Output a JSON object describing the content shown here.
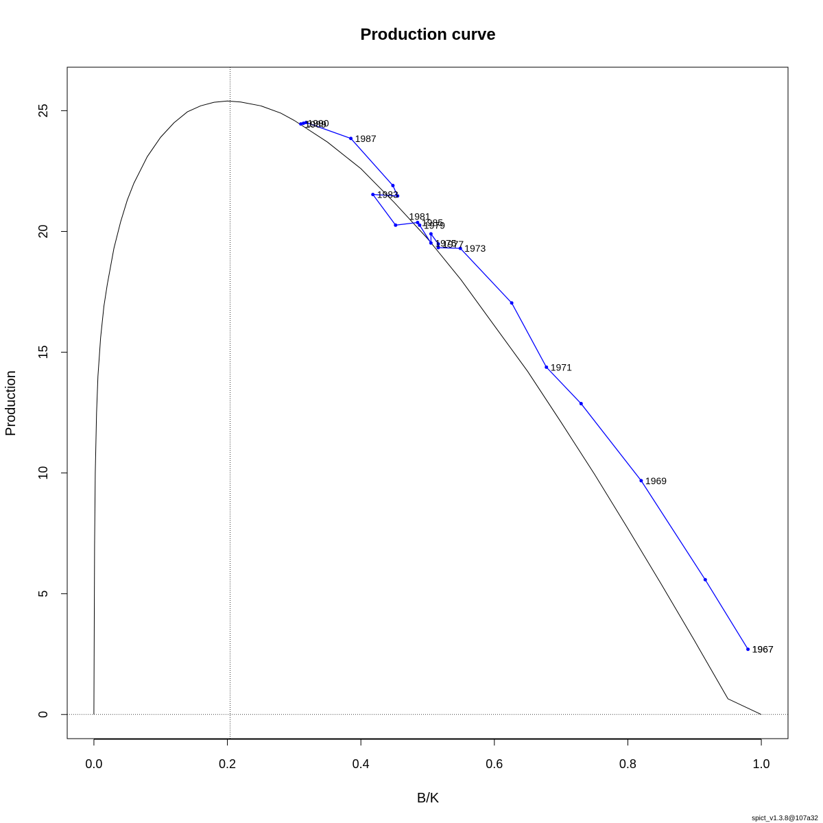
{
  "chart_data": {
    "type": "line",
    "title": "Production curve",
    "xlabel": "B/K",
    "ylabel": "Production",
    "xlim": [
      -0.04,
      1.04
    ],
    "ylim": [
      -1.0,
      26.8
    ],
    "x_ticks": [
      0.0,
      0.2,
      0.4,
      0.6,
      0.8,
      1.0
    ],
    "x_tick_labels": [
      "0.0",
      "0.2",
      "0.4",
      "0.6",
      "0.8",
      "1.0"
    ],
    "y_ticks": [
      0,
      5,
      10,
      15,
      20,
      25
    ],
    "y_tick_labels": [
      "0",
      "5",
      "10",
      "15",
      "20",
      "25"
    ],
    "bmsy_ref": 0.204,
    "zero_ref": 0,
    "curve": {
      "color": "#000000",
      "x": [
        0.0,
        0.001,
        0.002,
        0.004,
        0.006,
        0.01,
        0.015,
        0.02,
        0.03,
        0.04,
        0.05,
        0.06,
        0.08,
        0.1,
        0.12,
        0.14,
        0.16,
        0.18,
        0.2,
        0.22,
        0.25,
        0.28,
        0.3,
        0.35,
        0.4,
        0.45,
        0.5,
        0.55,
        0.6,
        0.65,
        0.7,
        0.75,
        0.8,
        0.85,
        0.9,
        0.95,
        1.0
      ],
      "y": [
        0.0,
        7.0,
        10.0,
        12.5,
        14.0,
        15.6,
        16.9,
        17.8,
        19.3,
        20.4,
        21.3,
        22.0,
        23.1,
        23.9,
        24.5,
        24.95,
        25.2,
        25.35,
        25.4,
        25.36,
        25.2,
        24.9,
        24.6,
        23.7,
        22.6,
        21.2,
        19.7,
        18.0,
        16.1,
        14.2,
        12.1,
        9.95,
        7.7,
        5.4,
        3.05,
        0.65,
        0.0
      ]
    },
    "series": [
      {
        "color": "#0000ff",
        "x": [
          0.98,
          0.916,
          0.82,
          0.73,
          0.678,
          0.626,
          0.549,
          0.516,
          0.516,
          0.505,
          0.505,
          0.488,
          0.485,
          0.452,
          0.418,
          0.455,
          0.448,
          0.385,
          0.318,
          0.31,
          0.314
        ],
        "y": [
          2.7,
          5.58,
          9.68,
          12.87,
          14.38,
          17.04,
          19.3,
          19.33,
          19.48,
          19.9,
          19.52,
          20.26,
          20.37,
          20.26,
          21.53,
          21.47,
          21.9,
          23.85,
          24.51,
          24.45,
          24.48
        ]
      }
    ],
    "point_labels": [
      {
        "x": 0.98,
        "y": 2.7,
        "text": "1967"
      },
      {
        "x": 0.98,
        "y": 2.7,
        "text": "1967"
      },
      {
        "x": 0.82,
        "y": 9.68,
        "text": "1969"
      },
      {
        "x": 0.678,
        "y": 14.38,
        "text": "1971"
      },
      {
        "x": 0.549,
        "y": 19.3,
        "text": "1973"
      },
      {
        "x": 0.516,
        "y": 19.48,
        "text": "1977"
      },
      {
        "x": 0.505,
        "y": 19.52,
        "text": "1975"
      },
      {
        "x": 0.488,
        "y": 20.26,
        "text": "1979"
      },
      {
        "x": 0.485,
        "y": 20.37,
        "text": "1985"
      },
      {
        "x": 0.466,
        "y": 20.63,
        "text": "1981"
      },
      {
        "x": 0.418,
        "y": 21.53,
        "text": "1983"
      },
      {
        "x": 0.385,
        "y": 23.85,
        "text": "1987"
      },
      {
        "x": 0.31,
        "y": 24.45,
        "text": "1989"
      },
      {
        "x": 0.314,
        "y": 24.48,
        "text": "1990"
      }
    ]
  },
  "footer": "spict_v1.3.8@107a32"
}
